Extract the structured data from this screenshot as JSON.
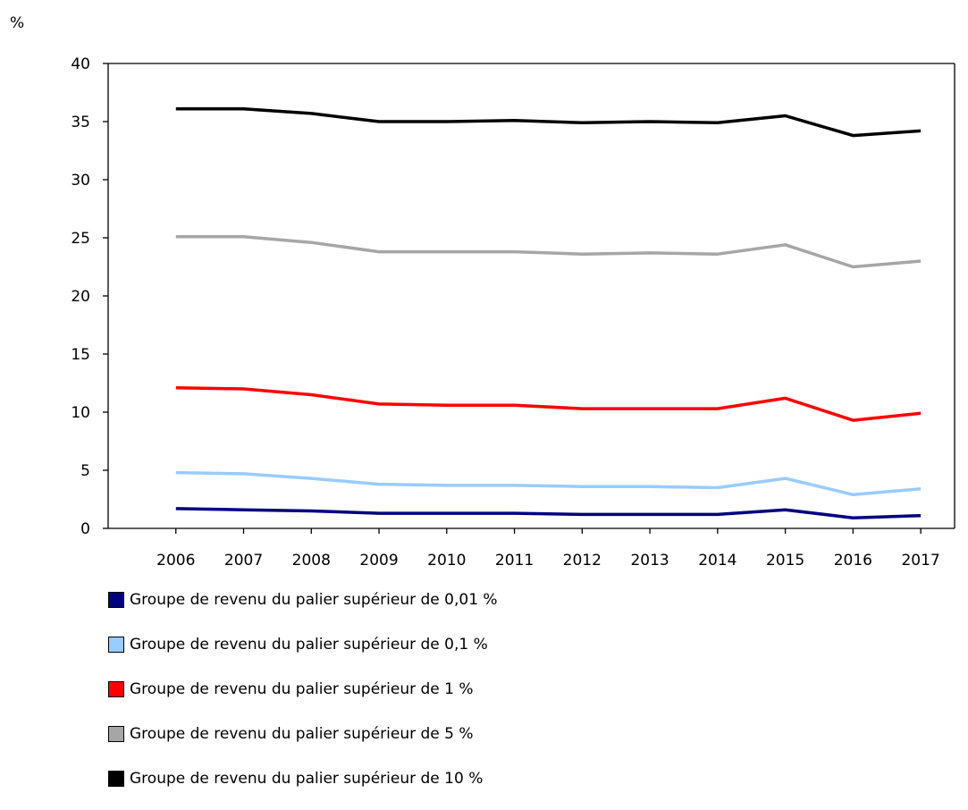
{
  "chart_data": {
    "type": "line",
    "title": "",
    "xlabel": "",
    "ylabel": "%",
    "ylim": [
      0,
      40
    ],
    "yticks": [
      "0",
      "5",
      "10",
      "15",
      "20",
      "25",
      "30",
      "35",
      "40"
    ],
    "categories": [
      "2006",
      "2007",
      "2008",
      "2009",
      "2010",
      "2011",
      "2012",
      "2013",
      "2014",
      "2015",
      "2016",
      "2017"
    ],
    "grid": false,
    "legend_position": "bottom",
    "series": [
      {
        "name": "Groupe de revenu du palier supérieur de 0,01 %",
        "color": "#000080",
        "values": [
          1.7,
          1.6,
          1.5,
          1.3,
          1.3,
          1.3,
          1.2,
          1.2,
          1.2,
          1.6,
          0.9,
          1.1
        ]
      },
      {
        "name": "Groupe de revenu du palier supérieur de 0,1 %",
        "color": "#99ccff",
        "values": [
          4.8,
          4.7,
          4.3,
          3.8,
          3.7,
          3.7,
          3.6,
          3.6,
          3.5,
          4.3,
          2.9,
          3.4
        ]
      },
      {
        "name": "Groupe de revenu du palier supérieur de 1 %",
        "color": "#ff0000",
        "values": [
          12.1,
          12.0,
          11.5,
          10.7,
          10.6,
          10.6,
          10.3,
          10.3,
          10.3,
          11.2,
          9.3,
          9.9
        ]
      },
      {
        "name": "Groupe de revenu du palier supérieur de 5 %",
        "color": "#a6a6a6",
        "values": [
          25.1,
          25.1,
          24.6,
          23.8,
          23.8,
          23.8,
          23.6,
          23.7,
          23.6,
          24.4,
          22.5,
          23.0
        ]
      },
      {
        "name": "Groupe de revenu du palier supérieur de 10 %",
        "color": "#000000",
        "values": [
          36.1,
          36.1,
          35.7,
          35.0,
          35.0,
          35.1,
          34.9,
          35.0,
          34.9,
          35.5,
          33.8,
          34.2
        ]
      }
    ]
  }
}
